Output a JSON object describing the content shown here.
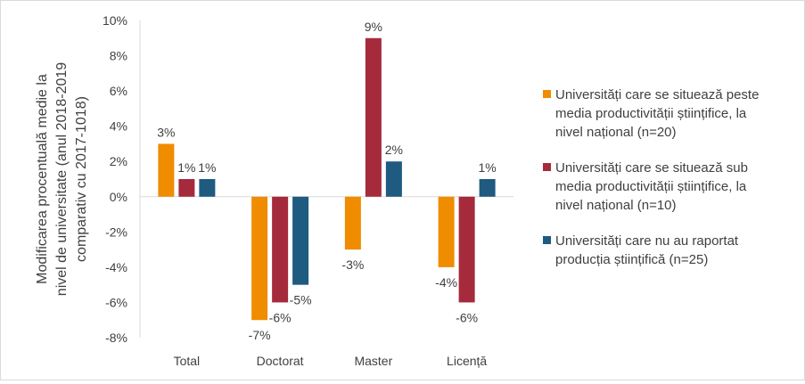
{
  "chart_data": {
    "type": "bar",
    "title": "",
    "xlabel": "",
    "ylabel_lines": [
      "Modificarea procentuală medie la",
      "nivel de universitate (anul 2018-2019",
      "comparativ cu 2017-1018)"
    ],
    "ylim": [
      -8,
      10
    ],
    "yticks": [
      {
        "value": 10,
        "label": "10%"
      },
      {
        "value": 8,
        "label": "8%"
      },
      {
        "value": 6,
        "label": "6%"
      },
      {
        "value": 4,
        "label": "4%"
      },
      {
        "value": 2,
        "label": "2%"
      },
      {
        "value": 0,
        "label": "0%"
      },
      {
        "value": -2,
        "label": "-2%"
      },
      {
        "value": -4,
        "label": "-4%"
      },
      {
        "value": -6,
        "label": "-6%"
      },
      {
        "value": -8,
        "label": "-8%"
      }
    ],
    "grid": false,
    "legend_position": "right",
    "categories": [
      "Total",
      "Doctorat",
      "Master",
      "Licență"
    ],
    "series": [
      {
        "name": "Universități care se situează peste media productivității științifice, la nivel național (n=20)",
        "legend_lines": [
          "Universități care se situează peste",
          "media productivității științifice, la",
          "nivel național (n=20)"
        ],
        "color": "#F08C00",
        "values": [
          3,
          -7,
          -3,
          -4
        ],
        "labels": [
          "3%",
          "-7%",
          "-3%",
          "-4%"
        ]
      },
      {
        "name": "Universități care se situează sub media productivității științifice, la nivel național (n=10)",
        "legend_lines": [
          "Universități care se situează sub",
          "media productivității științifice, la",
          "nivel național (n=10)"
        ],
        "color": "#A52A3C",
        "values": [
          1,
          -6,
          9,
          -6
        ],
        "labels": [
          "1%",
          "-6%",
          "9%",
          "-6%"
        ]
      },
      {
        "name": "Universități care nu au raportat producția științifică (n=25)",
        "legend_lines": [
          "Universități care nu au raportat",
          "producția științifică (n=25)"
        ],
        "color": "#1F5A80",
        "values": [
          1,
          -5,
          2,
          1
        ],
        "labels": [
          "1%",
          "-5%",
          "2%",
          "1%"
        ]
      }
    ]
  }
}
